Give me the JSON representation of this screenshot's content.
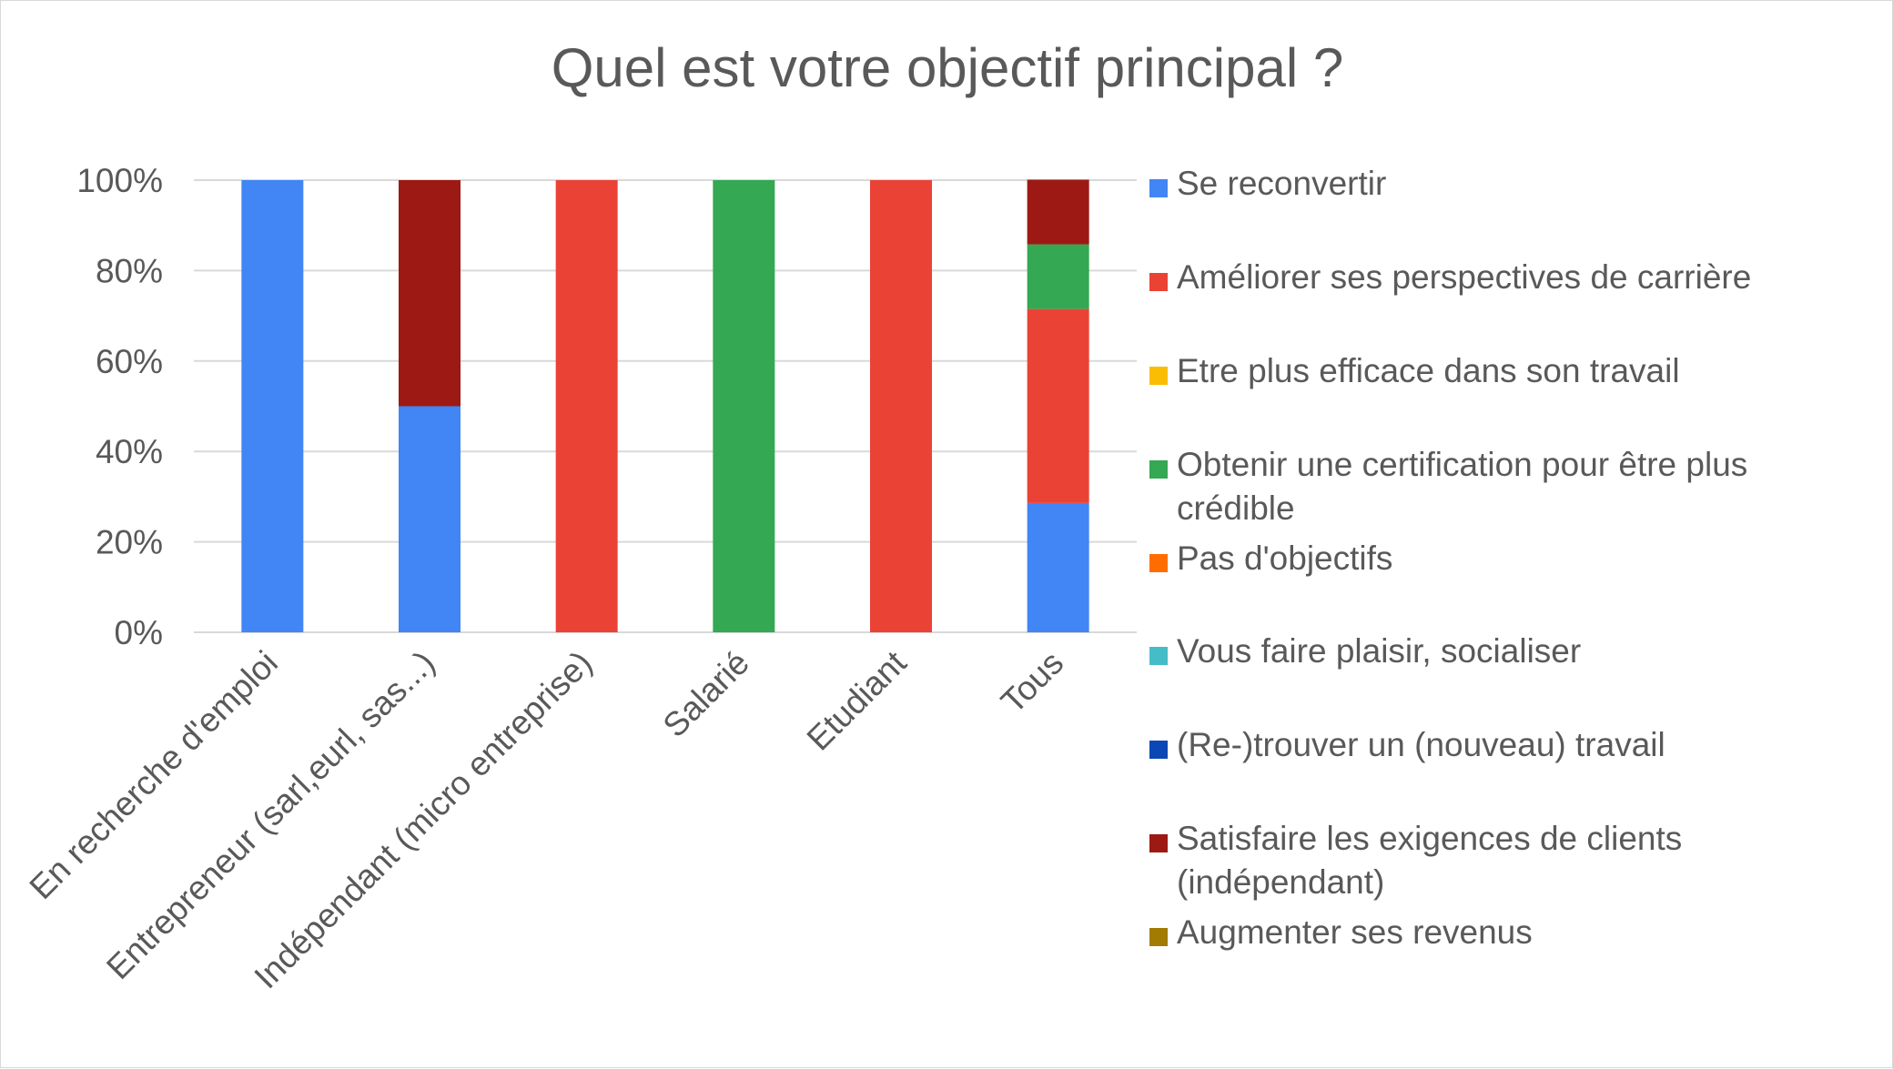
{
  "chart_data": {
    "type": "bar",
    "stacked": true,
    "percent": true,
    "title": "Quel est votre objectif principal ?",
    "xlabel": "",
    "ylabel": "",
    "ylim": [
      0,
      100
    ],
    "yticks": [
      "0%",
      "20%",
      "40%",
      "60%",
      "80%",
      "100%"
    ],
    "grid": true,
    "legend_position": "right",
    "categories": [
      "En recherche d'emploi",
      "Entrepreneur (sarl,eurl, sas...)",
      "Indépendant (micro entreprise)",
      "Salarié",
      "Etudiant",
      "Tous"
    ],
    "series": [
      {
        "name": "Se reconvertir",
        "color": "#4285f4",
        "values": [
          100,
          50,
          0,
          0,
          0,
          28.6
        ]
      },
      {
        "name": "Améliorer ses perspectives de carrière",
        "color": "#ea4335",
        "values": [
          0,
          0,
          100,
          0,
          100,
          42.9
        ]
      },
      {
        "name": "Etre plus efficace dans son travail",
        "color": "#fbbc04",
        "values": [
          0,
          0,
          0,
          0,
          0,
          0
        ]
      },
      {
        "name": "Obtenir une certification pour être plus crédible",
        "color": "#34a853",
        "values": [
          0,
          0,
          0,
          100,
          0,
          14.3
        ]
      },
      {
        "name": "Pas d'objectifs",
        "color": "#ff6d01",
        "values": [
          0,
          0,
          0,
          0,
          0,
          0
        ]
      },
      {
        "name": "Vous faire plaisir, socialiser",
        "color": "#46bdc6",
        "values": [
          0,
          0,
          0,
          0,
          0,
          0
        ]
      },
      {
        "name": "(Re-)trouver un (nouveau) travail",
        "color": "#0b47b5",
        "values": [
          0,
          0,
          0,
          0,
          0,
          0
        ]
      },
      {
        "name": "Satisfaire les exigences de clients (indépendant)",
        "color": "#9c1a13",
        "values": [
          0,
          50,
          0,
          0,
          0,
          14.3
        ]
      },
      {
        "name": "Augmenter ses revenus",
        "color": "#a17c00",
        "values": [
          0,
          0,
          0,
          0,
          0,
          0
        ]
      }
    ]
  }
}
